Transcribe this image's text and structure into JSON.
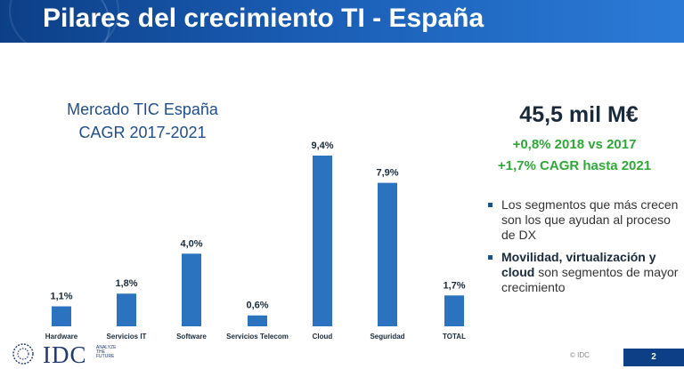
{
  "header": {
    "title": "Pilares del crecimiento TI - España"
  },
  "chart_data": {
    "type": "bar",
    "title_line1": "Mercado TIC España",
    "title_line2": "CAGR 2017-2021",
    "categories": [
      "Hardware",
      "Servicios IT",
      "Software",
      "Servicios Telecom",
      "Cloud",
      "Seguridad",
      "TOTAL"
    ],
    "values": [
      1.1,
      1.8,
      4.0,
      0.6,
      9.4,
      7.9,
      1.7
    ],
    "value_labels": [
      "1,1%",
      "1,8%",
      "4,0%",
      "0,6%",
      "9,4%",
      "7,9%",
      "1,7%"
    ],
    "bar_color": "#2b73be",
    "ylim": [
      0,
      9.4
    ]
  },
  "summary": {
    "headline": "45,5 mil M€",
    "line1": "+0,8% 2018 vs 2017",
    "line2": "+1,7% CAGR hasta 2021",
    "highlight_color": "#2ea836"
  },
  "bullets": {
    "b1": "Los segmentos que más crecen son los que ayudan al proceso de DX",
    "b2_bold": "Movilidad, virtualización y cloud",
    "b2_rest": " son segmentos de mayor crecimiento"
  },
  "footer": {
    "logo": "IDC",
    "tagline_1": "ANALYZE",
    "tagline_2": "THE",
    "tagline_3": "FUTURE",
    "copyright": "© IDC",
    "page_number": "2",
    "logo_icon": "idc-globe-icon"
  }
}
